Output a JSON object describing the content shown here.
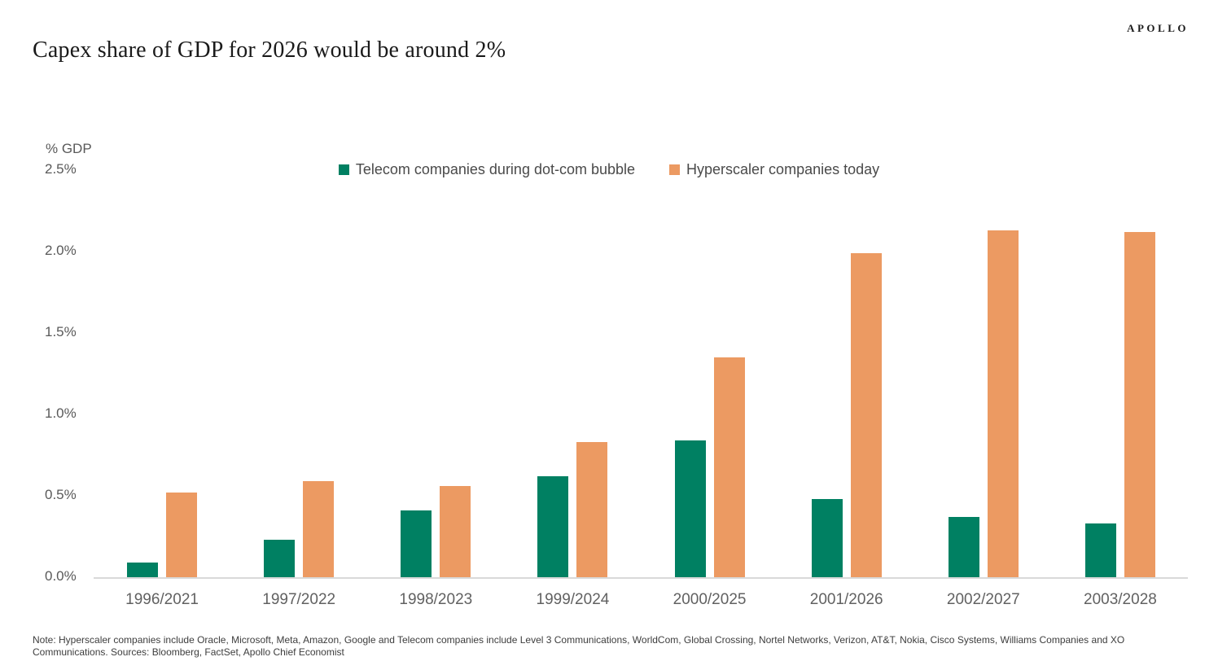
{
  "header": {
    "logo": "APOLLO",
    "title": "Capex share of GDP for 2026 would be around 2%"
  },
  "chart_data": {
    "type": "bar",
    "title": "Capex share of GDP for 2026 would be around 2%",
    "axis_title": "% GDP",
    "xlabel": "",
    "ylabel": "% GDP",
    "ylim": [
      0,
      2.5
    ],
    "yticks": [
      0.0,
      0.5,
      1.0,
      1.5,
      2.0,
      2.5
    ],
    "grid": false,
    "legend_position": "top-center",
    "categories": [
      "1996/2021",
      "1997/2022",
      "1998/2023",
      "1999/2024",
      "2000/2025",
      "2001/2026",
      "2002/2027",
      "2003/2028"
    ],
    "series": [
      {
        "name": "Telecom companies during dot-com bubble",
        "color": "#008062",
        "values": [
          0.09,
          0.23,
          0.41,
          0.62,
          0.84,
          0.48,
          0.37,
          0.33
        ]
      },
      {
        "name": "Hyperscaler companies today",
        "color": "#EC9A62",
        "values": [
          0.52,
          0.59,
          0.56,
          0.83,
          1.35,
          1.99,
          2.13,
          2.12
        ]
      }
    ]
  },
  "note": {
    "lines": [
      "Note: Hyperscaler companies include Oracle, Microsoft, Meta, Amazon, Google and Telecom companies include Level 3 Communications, WorldCom, Global Crossing, Nortel Networks, Verizon, AT&T, Nokia, Cisco Systems, Williams Companies and XO",
      "Communications. Sources: Bloomberg, FactSet, Apollo Chief Economist"
    ]
  }
}
